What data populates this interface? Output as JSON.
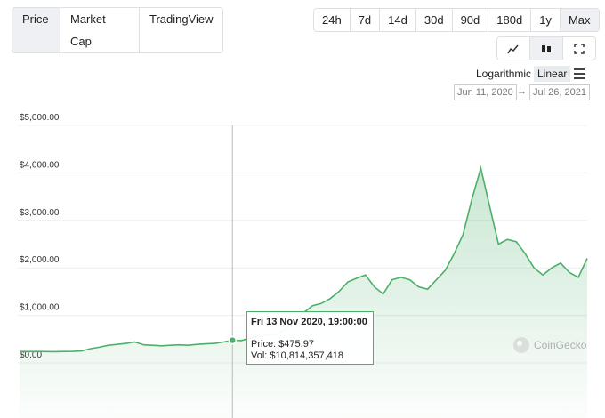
{
  "tabs": [
    "Price",
    "Market Cap",
    "TradingView"
  ],
  "ranges": [
    "24h",
    "7d",
    "14d",
    "30d",
    "90d",
    "180d",
    "1y",
    "Max"
  ],
  "scale_options": [
    "Logarithmic",
    "Linear"
  ],
  "date_from": "Jun 11, 2020",
  "date_to": "Jul 26, 2021",
  "watermark": "CoinGecko",
  "chart_data": {
    "type": "line",
    "color": "#4caf6a",
    "ylim": [
      0,
      5000
    ],
    "yticks": [
      {
        "value": 0,
        "label": "$0.00"
      },
      {
        "value": 1000,
        "label": "$1,000.00"
      },
      {
        "value": 2000,
        "label": "$2,000.00"
      },
      {
        "value": 3000,
        "label": "$3,000.00"
      },
      {
        "value": 4000,
        "label": "$4,000.00"
      },
      {
        "value": 5000,
        "label": "$5,000.00"
      }
    ],
    "grid": true,
    "values": [
      240,
      238,
      240,
      238,
      236,
      240,
      242,
      250,
      300,
      330,
      370,
      390,
      410,
      440,
      380,
      370,
      360,
      370,
      380,
      370,
      390,
      400,
      410,
      440,
      475.97,
      470,
      520,
      560,
      590,
      600,
      720,
      900,
      1050,
      1200,
      1250,
      1350,
      1500,
      1700,
      1780,
      1850,
      1600,
      1450,
      1750,
      1800,
      1750,
      1600,
      1550,
      1750,
      1950,
      2300,
      2700,
      3450,
      4100,
      3300,
      2500,
      2600,
      2550,
      2300,
      2000,
      1850,
      2000,
      2100,
      1900,
      1800,
      2200
    ],
    "tooltip": {
      "index": 24,
      "date": "Fri 13 Nov 2020, 19:00:00",
      "price": "Price: $475.97",
      "volume": "Vol: $10,814,357,418"
    }
  }
}
